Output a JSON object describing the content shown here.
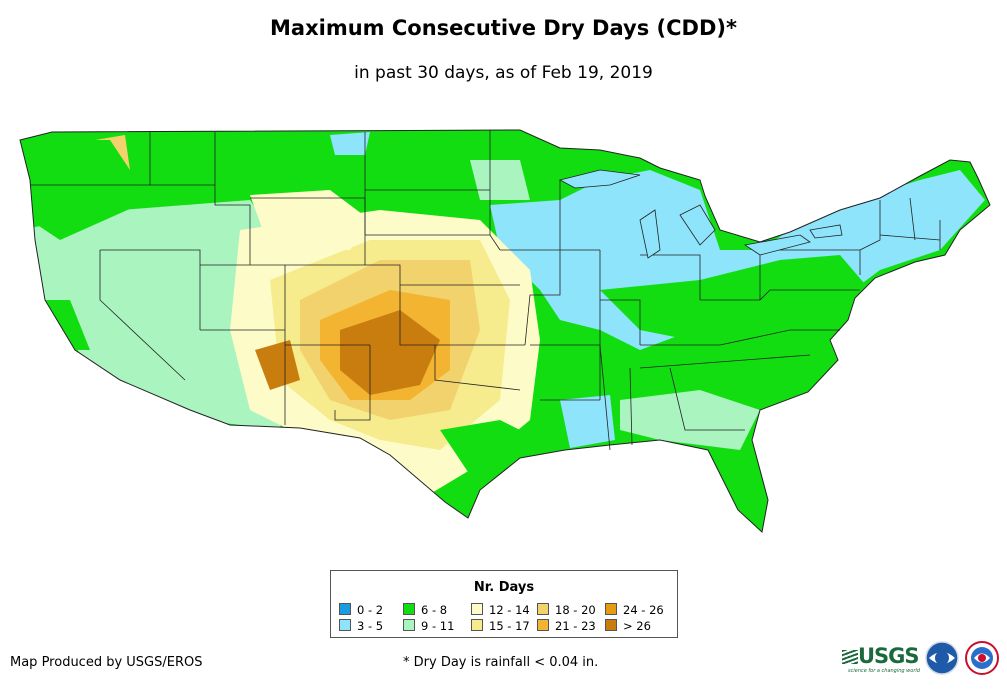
{
  "title": "Maximum Consecutive Dry Days (CDD)*",
  "subtitle": "in past 30 days, as of Feb 19, 2019",
  "legend": {
    "title": "Nr. Days",
    "items": [
      {
        "label": "0 - 2",
        "color": "#1a9de0"
      },
      {
        "label": "3 - 5",
        "color": "#8ee4fb"
      },
      {
        "label": "6 - 8",
        "color": "#11dd11"
      },
      {
        "label": "9 - 11",
        "color": "#a9f4bf"
      },
      {
        "label": "12 - 14",
        "color": "#fdfcc9"
      },
      {
        "label": "15 - 17",
        "color": "#f6eb8d"
      },
      {
        "label": "18 - 20",
        "color": "#f2d26c"
      },
      {
        "label": "21 - 23",
        "color": "#f2b431"
      },
      {
        "label": "24 - 26",
        "color": "#e49d12"
      },
      {
        "label": "> 26",
        "color": "#c97d0f"
      }
    ]
  },
  "credit": "Map Produced by USGS/EROS",
  "footnote": "* Dry Day is rainfall < 0.04 in.",
  "logos": {
    "usgs": "USGS",
    "usgs_tagline": "science for a changing world"
  }
}
